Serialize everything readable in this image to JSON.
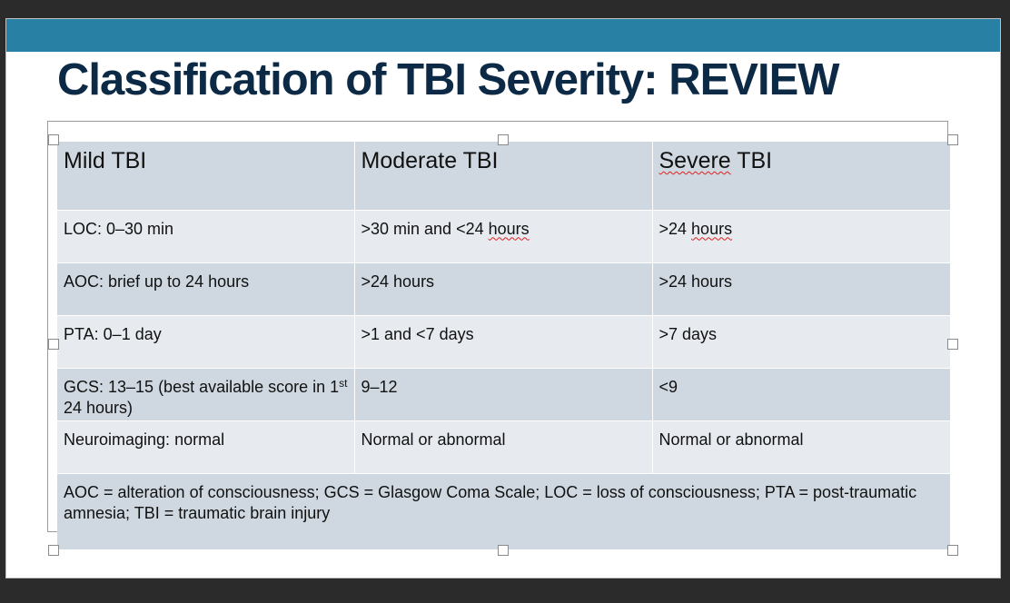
{
  "slide": {
    "title": "Classification of TBI Severity: REVIEW",
    "band_color": "#2980a5",
    "title_color": "#0c2a45"
  },
  "table": {
    "headers": [
      "Mild TBI",
      "Moderate TBI",
      "Severe TBI"
    ],
    "rows": [
      [
        "LOC: 0–30 min",
        ">30 min and <24 hours",
        ">24 hours"
      ],
      [
        "AOC: brief up to 24 hours",
        ">24 hours",
        ">24 hours"
      ],
      [
        "PTA: 0–1 day",
        ">1 and <7 days",
        ">7 days"
      ],
      [
        "GCS: 13–15 (best available score in 1st 24 hours)",
        "9–12",
        "<9"
      ],
      [
        "Neuroimaging: normal",
        "Normal or abnormal",
        "Normal or abnormal"
      ]
    ],
    "gcs_mild": {
      "before": "GCS: 13–15 (best available score in 1",
      "sup": "st",
      "after": " 24 hours)"
    },
    "moderate_loc": {
      "before": ">30 min and <24 ",
      "squiggle": "hours"
    },
    "severe_loc": {
      "before": ">24 ",
      "squiggle": "hours"
    },
    "severe_header": {
      "squiggle": "Severe",
      "after": " TBI"
    },
    "footnote": "AOC = alteration of consciousness; GCS = Glasgow Coma Scale; LOC = loss of consciousness; PTA = post-traumatic amnesia; TBI = traumatic brain injury"
  }
}
